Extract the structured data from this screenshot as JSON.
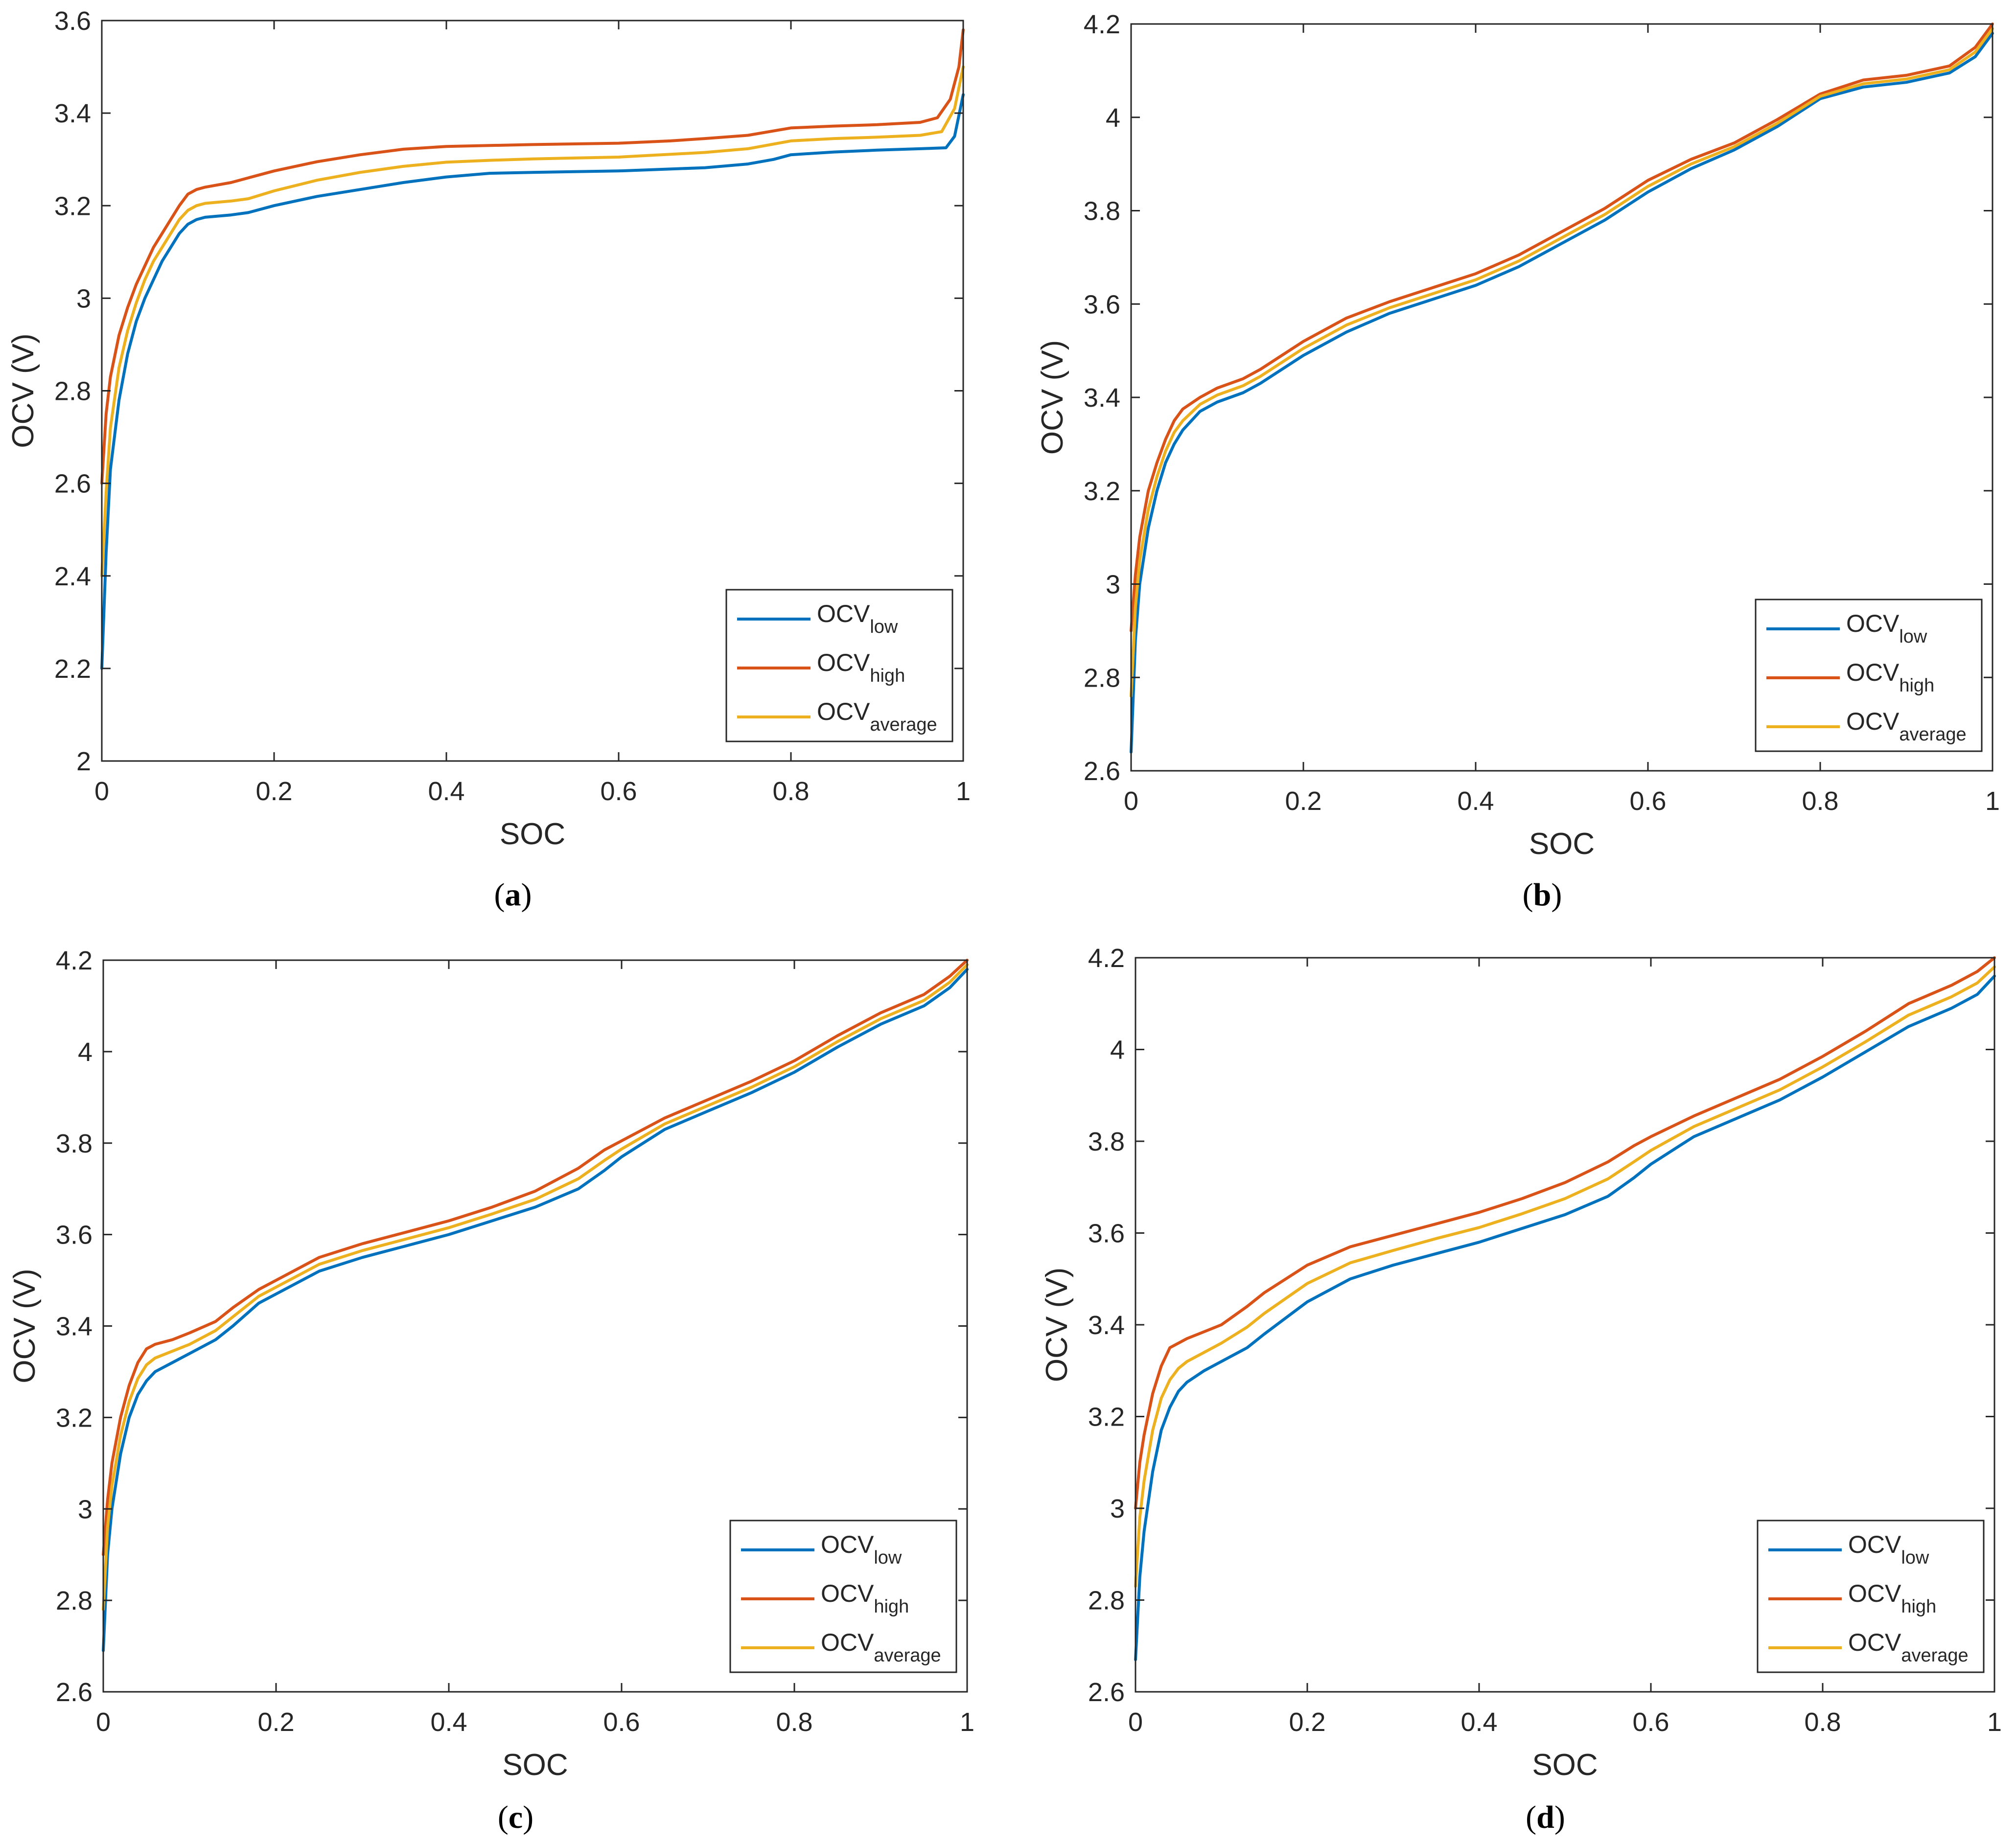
{
  "colors": {
    "low": "#0072BD",
    "high": "#D95319",
    "average": "#EDB120",
    "axis": "#262626",
    "text": "#262626"
  },
  "chart_data": [
    {
      "panel": "a",
      "caption_letter": "a",
      "type": "line",
      "xlabel": "SOC",
      "ylabel": "OCV (V)",
      "xlim": [
        0,
        1
      ],
      "ylim": [
        2,
        3.6
      ],
      "xticks": [
        "0",
        "0.2",
        "0.4",
        "0.6",
        "0.8",
        "1"
      ],
      "yticks": [
        "2",
        "2.2",
        "2.4",
        "2.6",
        "2.8",
        "3",
        "3.2",
        "3.4",
        "3.6"
      ],
      "legend": {
        "location": "bottom-right",
        "entries": [
          {
            "base": "OCV",
            "sub": "low"
          },
          {
            "base": "OCV",
            "sub": "high"
          },
          {
            "base": "OCV",
            "sub": "average"
          }
        ]
      },
      "series": [
        {
          "name": "OCV_low",
          "color_key": "low",
          "x": [
            0,
            0.005,
            0.01,
            0.02,
            0.03,
            0.04,
            0.05,
            0.06,
            0.07,
            0.08,
            0.09,
            0.1,
            0.11,
            0.12,
            0.15,
            0.17,
            0.2,
            0.25,
            0.3,
            0.35,
            0.4,
            0.45,
            0.5,
            0.6,
            0.7,
            0.75,
            0.78,
            0.8,
            0.85,
            0.9,
            0.95,
            0.98,
            0.99,
            1
          ],
          "y": [
            2.2,
            2.45,
            2.63,
            2.78,
            2.88,
            2.95,
            3.0,
            3.04,
            3.08,
            3.11,
            3.14,
            3.16,
            3.17,
            3.175,
            3.18,
            3.185,
            3.2,
            3.22,
            3.235,
            3.25,
            3.262,
            3.27,
            3.272,
            3.275,
            3.282,
            3.29,
            3.3,
            3.31,
            3.316,
            3.32,
            3.323,
            3.325,
            3.35,
            3.44
          ]
        },
        {
          "name": "OCV_high",
          "color_key": "high",
          "x": [
            0,
            0.005,
            0.01,
            0.02,
            0.03,
            0.04,
            0.05,
            0.06,
            0.07,
            0.08,
            0.09,
            0.1,
            0.11,
            0.12,
            0.15,
            0.17,
            0.2,
            0.25,
            0.3,
            0.35,
            0.4,
            0.45,
            0.5,
            0.6,
            0.66,
            0.7,
            0.75,
            0.8,
            0.85,
            0.9,
            0.95,
            0.97,
            0.985,
            0.995,
            1
          ],
          "y": [
            2.6,
            2.75,
            2.83,
            2.92,
            2.98,
            3.03,
            3.07,
            3.11,
            3.14,
            3.17,
            3.2,
            3.225,
            3.235,
            3.24,
            3.25,
            3.26,
            3.275,
            3.295,
            3.31,
            3.322,
            3.328,
            3.33,
            3.332,
            3.335,
            3.34,
            3.345,
            3.352,
            3.368,
            3.372,
            3.375,
            3.38,
            3.39,
            3.43,
            3.5,
            3.58
          ]
        },
        {
          "name": "OCV_average",
          "color_key": "average",
          "x": [
            0,
            0.005,
            0.01,
            0.02,
            0.03,
            0.04,
            0.05,
            0.06,
            0.07,
            0.08,
            0.09,
            0.1,
            0.11,
            0.12,
            0.15,
            0.17,
            0.2,
            0.25,
            0.3,
            0.35,
            0.4,
            0.45,
            0.5,
            0.6,
            0.7,
            0.75,
            0.8,
            0.85,
            0.9,
            0.95,
            0.975,
            0.99,
            1
          ],
          "y": [
            2.4,
            2.58,
            2.72,
            2.85,
            2.93,
            2.99,
            3.04,
            3.08,
            3.11,
            3.14,
            3.17,
            3.19,
            3.2,
            3.205,
            3.21,
            3.215,
            3.232,
            3.255,
            3.272,
            3.285,
            3.294,
            3.298,
            3.301,
            3.305,
            3.315,
            3.323,
            3.34,
            3.345,
            3.348,
            3.352,
            3.36,
            3.41,
            3.5
          ]
        }
      ]
    },
    {
      "panel": "b",
      "caption_letter": "b",
      "type": "line",
      "xlabel": "SOC",
      "ylabel": "OCV (V)",
      "xlim": [
        0,
        1
      ],
      "ylim": [
        2.6,
        4.2
      ],
      "xticks": [
        "0",
        "0.2",
        "0.4",
        "0.6",
        "0.8",
        "1"
      ],
      "yticks": [
        "2.6",
        "2.8",
        "3",
        "3.2",
        "3.4",
        "3.6",
        "3.8",
        "4",
        "4.2"
      ],
      "legend": {
        "location": "bottom-right",
        "entries": [
          {
            "base": "OCV",
            "sub": "low"
          },
          {
            "base": "OCV",
            "sub": "high"
          },
          {
            "base": "OCV",
            "sub": "average"
          }
        ]
      },
      "series": [
        {
          "name": "OCV_low",
          "color_key": "low",
          "x": [
            0,
            0.005,
            0.01,
            0.02,
            0.03,
            0.04,
            0.05,
            0.06,
            0.08,
            0.1,
            0.13,
            0.15,
            0.2,
            0.25,
            0.3,
            0.35,
            0.4,
            0.45,
            0.5,
            0.55,
            0.6,
            0.65,
            0.7,
            0.75,
            0.8,
            0.85,
            0.9,
            0.95,
            0.98,
            1
          ],
          "y": [
            2.64,
            2.88,
            3.0,
            3.12,
            3.2,
            3.26,
            3.3,
            3.33,
            3.37,
            3.39,
            3.41,
            3.43,
            3.49,
            3.54,
            3.58,
            3.61,
            3.64,
            3.68,
            3.73,
            3.78,
            3.84,
            3.89,
            3.93,
            3.98,
            4.04,
            4.065,
            4.075,
            4.095,
            4.13,
            4.18
          ]
        },
        {
          "name": "OCV_high",
          "color_key": "high",
          "x": [
            0,
            0.005,
            0.01,
            0.02,
            0.03,
            0.04,
            0.05,
            0.06,
            0.08,
            0.1,
            0.13,
            0.15,
            0.2,
            0.25,
            0.3,
            0.35,
            0.4,
            0.45,
            0.5,
            0.55,
            0.6,
            0.65,
            0.7,
            0.75,
            0.8,
            0.85,
            0.9,
            0.95,
            0.98,
            1
          ],
          "y": [
            2.9,
            3.02,
            3.1,
            3.2,
            3.26,
            3.31,
            3.35,
            3.375,
            3.4,
            3.42,
            3.44,
            3.46,
            3.52,
            3.57,
            3.605,
            3.635,
            3.665,
            3.705,
            3.755,
            3.805,
            3.865,
            3.91,
            3.945,
            3.995,
            4.05,
            4.08,
            4.09,
            4.11,
            4.15,
            4.2
          ]
        },
        {
          "name": "OCV_average",
          "color_key": "average",
          "x": [
            0,
            0.005,
            0.01,
            0.02,
            0.03,
            0.04,
            0.05,
            0.06,
            0.08,
            0.1,
            0.13,
            0.15,
            0.2,
            0.25,
            0.3,
            0.35,
            0.4,
            0.45,
            0.5,
            0.55,
            0.6,
            0.65,
            0.7,
            0.75,
            0.8,
            0.85,
            0.9,
            0.95,
            0.98,
            1
          ],
          "y": [
            2.76,
            2.95,
            3.05,
            3.16,
            3.23,
            3.285,
            3.325,
            3.35,
            3.385,
            3.405,
            3.425,
            3.445,
            3.505,
            3.555,
            3.592,
            3.622,
            3.652,
            3.692,
            3.742,
            3.792,
            3.852,
            3.9,
            3.937,
            3.987,
            4.045,
            4.072,
            4.082,
            4.102,
            4.14,
            4.19
          ]
        }
      ]
    },
    {
      "panel": "c",
      "caption_letter": "c",
      "type": "line",
      "xlabel": "SOC",
      "ylabel": "OCV (V)",
      "xlim": [
        0,
        1
      ],
      "ylim": [
        2.6,
        4.2
      ],
      "xticks": [
        "0",
        "0.2",
        "0.4",
        "0.6",
        "0.8",
        "1"
      ],
      "yticks": [
        "2.6",
        "2.8",
        "3",
        "3.2",
        "3.4",
        "3.6",
        "3.8",
        "4",
        "4.2"
      ],
      "legend": {
        "location": "bottom-right",
        "entries": [
          {
            "base": "OCV",
            "sub": "low"
          },
          {
            "base": "OCV",
            "sub": "high"
          },
          {
            "base": "OCV",
            "sub": "average"
          }
        ]
      },
      "series": [
        {
          "name": "OCV_low",
          "color_key": "low",
          "x": [
            0,
            0.005,
            0.01,
            0.02,
            0.03,
            0.04,
            0.05,
            0.06,
            0.08,
            0.1,
            0.13,
            0.15,
            0.18,
            0.2,
            0.25,
            0.3,
            0.35,
            0.4,
            0.45,
            0.5,
            0.55,
            0.58,
            0.6,
            0.65,
            0.7,
            0.75,
            0.8,
            0.85,
            0.9,
            0.95,
            0.98,
            1
          ],
          "y": [
            2.69,
            2.9,
            3.0,
            3.12,
            3.2,
            3.25,
            3.28,
            3.3,
            3.32,
            3.34,
            3.37,
            3.4,
            3.45,
            3.47,
            3.52,
            3.55,
            3.575,
            3.6,
            3.63,
            3.66,
            3.7,
            3.74,
            3.77,
            3.83,
            3.87,
            3.91,
            3.955,
            4.01,
            4.06,
            4.1,
            4.14,
            4.18
          ]
        },
        {
          "name": "OCV_high",
          "color_key": "high",
          "x": [
            0,
            0.005,
            0.01,
            0.02,
            0.03,
            0.04,
            0.05,
            0.06,
            0.08,
            0.1,
            0.13,
            0.15,
            0.18,
            0.2,
            0.25,
            0.3,
            0.35,
            0.4,
            0.45,
            0.5,
            0.55,
            0.58,
            0.6,
            0.65,
            0.7,
            0.75,
            0.8,
            0.85,
            0.9,
            0.95,
            0.98,
            1
          ],
          "y": [
            2.9,
            3.02,
            3.1,
            3.2,
            3.27,
            3.32,
            3.35,
            3.36,
            3.37,
            3.385,
            3.41,
            3.44,
            3.48,
            3.5,
            3.55,
            3.58,
            3.605,
            3.63,
            3.66,
            3.695,
            3.745,
            3.785,
            3.805,
            3.855,
            3.895,
            3.935,
            3.98,
            4.035,
            4.085,
            4.125,
            4.165,
            4.2
          ]
        },
        {
          "name": "OCV_average",
          "color_key": "average",
          "x": [
            0,
            0.005,
            0.01,
            0.02,
            0.03,
            0.04,
            0.05,
            0.06,
            0.08,
            0.1,
            0.13,
            0.15,
            0.18,
            0.2,
            0.25,
            0.3,
            0.35,
            0.4,
            0.45,
            0.5,
            0.55,
            0.58,
            0.6,
            0.65,
            0.7,
            0.75,
            0.8,
            0.85,
            0.9,
            0.95,
            0.98,
            1
          ],
          "y": [
            2.78,
            2.96,
            3.05,
            3.16,
            3.235,
            3.285,
            3.315,
            3.33,
            3.345,
            3.36,
            3.39,
            3.42,
            3.465,
            3.485,
            3.535,
            3.565,
            3.59,
            3.615,
            3.645,
            3.677,
            3.722,
            3.762,
            3.787,
            3.842,
            3.882,
            3.922,
            3.967,
            4.022,
            4.072,
            4.112,
            4.152,
            4.19
          ]
        }
      ]
    },
    {
      "panel": "d",
      "caption_letter": "d",
      "type": "line",
      "xlabel": "SOC",
      "ylabel": "OCV (V)",
      "xlim": [
        0,
        1
      ],
      "ylim": [
        2.6,
        4.2
      ],
      "xticks": [
        "0",
        "0.2",
        "0.4",
        "0.6",
        "0.8",
        "1"
      ],
      "yticks": [
        "2.6",
        "2.8",
        "3",
        "3.2",
        "3.4",
        "3.6",
        "3.8",
        "4",
        "4.2"
      ],
      "legend": {
        "location": "bottom-right",
        "entries": [
          {
            "base": "OCV",
            "sub": "low"
          },
          {
            "base": "OCV",
            "sub": "high"
          },
          {
            "base": "OCV",
            "sub": "average"
          }
        ]
      },
      "series": [
        {
          "name": "OCV_low",
          "color_key": "low",
          "x": [
            0,
            0.005,
            0.01,
            0.02,
            0.03,
            0.04,
            0.05,
            0.06,
            0.08,
            0.1,
            0.13,
            0.15,
            0.2,
            0.25,
            0.3,
            0.35,
            0.4,
            0.45,
            0.5,
            0.55,
            0.58,
            0.6,
            0.65,
            0.7,
            0.75,
            0.8,
            0.85,
            0.9,
            0.95,
            0.98,
            1
          ],
          "y": [
            2.67,
            2.85,
            2.95,
            3.08,
            3.17,
            3.22,
            3.255,
            3.275,
            3.3,
            3.32,
            3.35,
            3.38,
            3.45,
            3.5,
            3.53,
            3.555,
            3.58,
            3.61,
            3.64,
            3.68,
            3.72,
            3.75,
            3.81,
            3.85,
            3.89,
            3.94,
            3.995,
            4.05,
            4.09,
            4.12,
            4.16
          ]
        },
        {
          "name": "OCV_high",
          "color_key": "high",
          "x": [
            0,
            0.005,
            0.01,
            0.02,
            0.03,
            0.04,
            0.05,
            0.06,
            0.08,
            0.1,
            0.13,
            0.15,
            0.2,
            0.25,
            0.3,
            0.35,
            0.4,
            0.45,
            0.5,
            0.55,
            0.58,
            0.6,
            0.65,
            0.7,
            0.75,
            0.8,
            0.85,
            0.9,
            0.95,
            0.98,
            1
          ],
          "y": [
            3.0,
            3.1,
            3.16,
            3.25,
            3.31,
            3.35,
            3.36,
            3.37,
            3.385,
            3.4,
            3.44,
            3.47,
            3.53,
            3.57,
            3.595,
            3.62,
            3.645,
            3.675,
            3.71,
            3.755,
            3.79,
            3.81,
            3.855,
            3.895,
            3.935,
            3.985,
            4.04,
            4.1,
            4.14,
            4.17,
            4.2
          ]
        },
        {
          "name": "OCV_average",
          "color_key": "average",
          "x": [
            0,
            0.005,
            0.01,
            0.02,
            0.03,
            0.04,
            0.05,
            0.06,
            0.08,
            0.1,
            0.13,
            0.15,
            0.2,
            0.25,
            0.3,
            0.35,
            0.4,
            0.45,
            0.5,
            0.55,
            0.58,
            0.6,
            0.65,
            0.7,
            0.75,
            0.8,
            0.85,
            0.9,
            0.95,
            0.98,
            1
          ],
          "y": [
            2.83,
            2.98,
            3.06,
            3.17,
            3.24,
            3.28,
            3.305,
            3.32,
            3.34,
            3.36,
            3.395,
            3.425,
            3.49,
            3.535,
            3.562,
            3.588,
            3.612,
            3.642,
            3.675,
            3.718,
            3.755,
            3.78,
            3.832,
            3.872,
            3.912,
            3.962,
            4.017,
            4.075,
            4.115,
            4.145,
            4.18
          ]
        }
      ]
    }
  ]
}
